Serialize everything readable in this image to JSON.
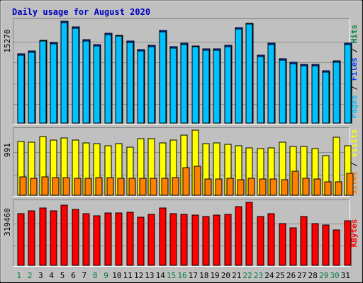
{
  "chart_data": {
    "type": "bar",
    "title": "Daily usage for August 2020",
    "categories": [
      "1",
      "2",
      "3",
      "4",
      "5",
      "6",
      "7",
      "8",
      "9",
      "10",
      "11",
      "12",
      "13",
      "14",
      "15",
      "16",
      "17",
      "18",
      "19",
      "20",
      "21",
      "22",
      "23",
      "24",
      "25",
      "26",
      "27",
      "28",
      "29",
      "30",
      "31"
    ],
    "weekend_days": [
      "1",
      "2",
      "8",
      "9",
      "15",
      "16",
      "22",
      "23",
      "29",
      "30"
    ],
    "panels": [
      {
        "id": "pages-files-hits",
        "scale_label": "15270",
        "ymax": 15270,
        "legend": [
          {
            "text": "Pages",
            "color": "#00c0ff"
          },
          {
            "text": " / ",
            "color": "#000000"
          },
          {
            "text": "Files",
            "color": "#0040ff"
          },
          {
            "text": " / ",
            "color": "#000000"
          },
          {
            "text": "Hits",
            "color": "#008040"
          }
        ],
        "series": [
          {
            "name": "Hits",
            "color": "#008040",
            "values": [
              10400,
              10850,
              12450,
              12100,
              15270,
              14400,
              12500,
              11800,
              13500,
              13200,
              12300,
              11050,
              11650,
              13850,
              11450,
              11950,
              11600,
              11100,
              11150,
              11700,
              14300,
              15000,
              10200,
              11950,
              9600,
              9100,
              8800,
              8750,
              7850,
              9300,
              12000
            ]
          },
          {
            "name": "Files",
            "color": "#0040ff",
            "values": [
              10400,
              10850,
              12450,
              12100,
              15270,
              14400,
              12500,
              11800,
              13500,
              13200,
              12300,
              11050,
              11650,
              13850,
              11450,
              11950,
              11600,
              11100,
              11150,
              11700,
              14300,
              15000,
              10200,
              11950,
              9600,
              9100,
              8800,
              8750,
              7850,
              9300,
              12000
            ]
          },
          {
            "name": "Pages",
            "color": "#00c0ff",
            "values": [
              10200,
              10650,
              12250,
              11900,
              15070,
              14200,
              12300,
              11600,
              13300,
              13000,
              12100,
              10850,
              11450,
              13650,
              11250,
              11750,
              11400,
              10900,
              10950,
              11500,
              14100,
              14800,
              10000,
              11750,
              9400,
              8900,
              8600,
              8550,
              7650,
              9100,
              11800
            ]
          }
        ]
      },
      {
        "id": "visits-sites",
        "scale_label": "991",
        "ymax": 991,
        "legend": [
          {
            "text": "Sites",
            "color": "#ff8000"
          },
          {
            "text": " / ",
            "color": "#000000"
          },
          {
            "text": "Visits",
            "color": "#ffff00"
          }
        ],
        "series": [
          {
            "name": "Visits",
            "color": "#ffff00",
            "values": [
              820,
              808,
              891,
              838,
              868,
              843,
              796,
              781,
              752,
              789,
              732,
              858,
              866,
              798,
              838,
              920,
              991,
              790,
              792,
              778,
              757,
              717,
              711,
              717,
              810,
              743,
              745,
              709,
              600,
              887,
              750
            ]
          },
          {
            "name": "Sites",
            "color": "#ff8000",
            "values": [
              277,
              254,
              283,
              270,
              270,
              262,
              256,
              266,
              273,
              262,
              262,
              255,
              263,
              262,
              266,
              416,
              446,
              250,
              250,
              256,
              239,
              254,
              243,
              245,
              241,
              365,
              256,
              246,
              203,
              202,
              338
            ]
          }
        ]
      },
      {
        "id": "kbytes",
        "scale_label": "319460",
        "ymax": 319460,
        "legend": [
          {
            "text": "KBytes",
            "color": "#ff0000"
          }
        ],
        "series": [
          {
            "name": "KBytes",
            "color": "#ff0000",
            "values": [
              263000,
              278000,
              290000,
              275000,
              305000,
              284000,
              262000,
              253000,
              267000,
              266000,
              269000,
              244000,
              258000,
              289000,
              261000,
              259000,
              254000,
              249000,
              256000,
              259000,
              299000,
              319460,
              247000,
              262000,
              212000,
              189000,
              246000,
              210000,
              206000,
              180000,
              227000
            ]
          }
        ]
      }
    ],
    "xlabel": "",
    "ylabel": "",
    "legend_position": "right",
    "grid": true
  }
}
